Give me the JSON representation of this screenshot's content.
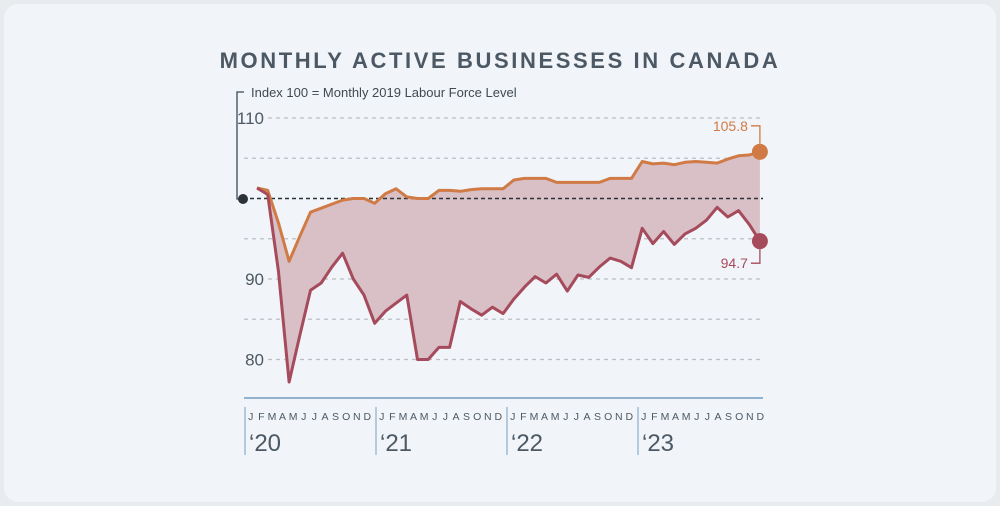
{
  "chart_data": {
    "type": "line",
    "title": "MONTHLY ACTIVE BUSINESSES IN CANADA",
    "annotation": "Index 100 = Monthly 2019 Labour Force Level",
    "x_start": "2020-01",
    "x_end": "2023-12",
    "month_letters": [
      "J",
      "F",
      "M",
      "A",
      "M",
      "J",
      "J",
      "A",
      "S",
      "O",
      "N",
      "D"
    ],
    "years": [
      "‘20",
      "‘21",
      "‘22",
      "‘23"
    ],
    "ylim": [
      76,
      111
    ],
    "yticks": [
      "80",
      "90",
      "110"
    ],
    "gridlines": [
      80,
      85,
      90,
      95,
      105,
      110
    ],
    "reference_line": 100,
    "colors": {
      "upper": "#d07b45",
      "lower": "#a54b5c",
      "fill": "#d9bfc6",
      "reference": "#2b3238",
      "grid": "#b9bfc5",
      "axis": "#8fb2cf"
    },
    "series": [
      {
        "values": [
          101.3,
          101.0,
          97.0,
          92.2,
          95.3,
          98.3,
          98.8,
          99.3,
          99.8,
          100,
          100,
          99.4,
          100.6,
          101.2,
          100.2,
          100,
          100,
          101,
          101,
          100.9,
          101.1,
          101.2,
          101.2,
          101.2,
          102.3,
          102.5,
          102.5,
          102.5,
          102,
          102,
          102,
          102,
          102,
          102.5,
          102.5,
          102.5,
          104.6,
          104.3,
          104.4,
          104.2,
          104.5,
          104.6,
          104.5,
          104.4,
          104.9,
          105.3,
          105.4,
          105.8
        ]
      },
      {
        "values": [
          101.3,
          100.5,
          91.0,
          77.2,
          83.0,
          88.6,
          89.5,
          91.5,
          93.2,
          90.0,
          88.0,
          84.5,
          86.0,
          87.0,
          88.0,
          80.0,
          80.0,
          81.5,
          81.5,
          87.2,
          86.3,
          85.5,
          86.5,
          85.7,
          87.5,
          89.0,
          90.3,
          89.5,
          90.6,
          88.5,
          90.5,
          90.2,
          91.5,
          92.6,
          92.2,
          91.4,
          96.3,
          94.4,
          95.9,
          94.3,
          95.6,
          96.3,
          97.3,
          98.9,
          97.7,
          98.5,
          96.8,
          94.7
        ]
      }
    ],
    "end_labels": [
      "105.8",
      "94.7"
    ]
  }
}
